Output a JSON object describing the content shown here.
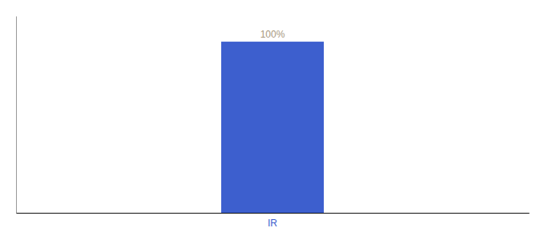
{
  "chart_data": {
    "type": "bar",
    "categories": [
      "IR"
    ],
    "values": [
      100
    ],
    "value_labels": [
      "100%"
    ],
    "color": "#3d5fce",
    "ylim": [
      0,
      115
    ],
    "data_labels": true,
    "tick_labels": "x",
    "grid": false
  }
}
